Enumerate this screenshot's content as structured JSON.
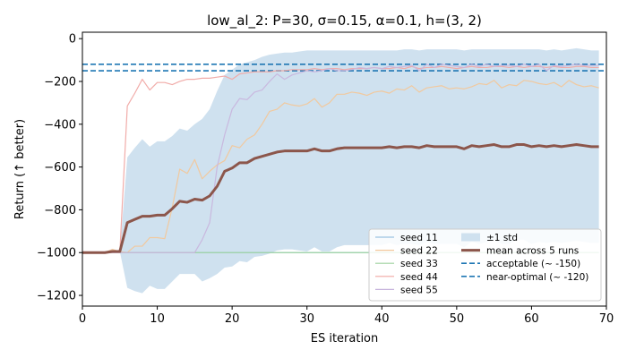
{
  "chart_data": {
    "type": "line",
    "title": "low_al_2: P=30, σ=0.15, α=0.1, h=(3, 2)",
    "xlabel": "ES iteration",
    "ylabel": "Return (↑ better)",
    "xlim": [
      0,
      70
    ],
    "ylim": [
      -1250,
      30
    ],
    "xticks": [
      0,
      10,
      20,
      30,
      40,
      50,
      60,
      70
    ],
    "yticks": [
      0,
      -200,
      -400,
      -600,
      -800,
      -1000,
      -1200
    ],
    "xtick_labels": [
      "0",
      "10",
      "20",
      "30",
      "40",
      "50",
      "60",
      "70"
    ],
    "ytick_labels": [
      "0",
      "−200",
      "−400",
      "−600",
      "−800",
      "−1000",
      "−1200"
    ],
    "grid": false,
    "legend_position": "lower-right",
    "colors": {
      "seed_11": "#9ac3e3",
      "seed_22": "#f2c79a",
      "seed_33": "#9fd39f",
      "seed_44": "#f0a8a4",
      "seed_55": "#c8b5dd",
      "std_band": "#cfe1ef",
      "mean": "#8c564b",
      "reference": "#1f77b4"
    },
    "x": [
      0,
      1,
      2,
      3,
      4,
      5,
      6,
      7,
      8,
      9,
      10,
      11,
      12,
      13,
      14,
      15,
      16,
      17,
      18,
      19,
      20,
      21,
      22,
      23,
      24,
      25,
      26,
      27,
      28,
      29,
      30,
      31,
      32,
      33,
      34,
      35,
      36,
      37,
      38,
      39,
      40,
      41,
      42,
      43,
      44,
      45,
      46,
      47,
      48,
      49,
      50,
      51,
      52,
      53,
      54,
      55,
      56,
      57,
      58,
      59,
      60,
      61,
      62,
      63,
      64,
      65,
      66,
      67,
      68,
      69
    ],
    "series": [
      {
        "name": "seed 11",
        "color_key": "seed_11",
        "values": [
          -1000,
          -1000,
          -1000,
          -1000,
          -1000,
          -1000,
          -1000,
          -1000,
          -1000,
          -1000,
          -1000,
          -1000,
          -1000,
          -1000,
          -1000,
          -1000,
          -1000,
          -1000,
          -1000,
          -1000,
          -1000,
          -1000,
          -1000,
          -1000,
          -1000,
          -1000,
          -1000,
          -1000,
          -1000,
          -1000,
          -1000,
          -1000,
          -1000,
          -1000,
          -1000,
          -1000,
          -1000,
          -1000,
          -1000,
          -1000,
          -1000,
          -1000,
          -1000,
          -1000,
          -1000,
          -1000,
          -1000,
          -1000,
          -1000,
          -1000,
          -1000,
          -1000,
          -1000,
          -1000,
          -1000,
          -1000,
          -1000,
          -1000,
          -1000,
          -1000,
          -1000,
          -1000,
          -1000,
          -1000,
          -1000,
          -1000,
          -1000,
          -1000,
          -1000,
          -1000
        ]
      },
      {
        "name": "seed 22",
        "color_key": "seed_22",
        "values": [
          -1000,
          -1000,
          -1000,
          -1000,
          -985,
          -995,
          -1000,
          -970,
          -970,
          -930,
          -930,
          -935,
          -790,
          -610,
          -630,
          -565,
          -655,
          -620,
          -590,
          -570,
          -500,
          -510,
          -470,
          -450,
          -400,
          -340,
          -330,
          -300,
          -310,
          -315,
          -305,
          -280,
          -320,
          -300,
          -260,
          -260,
          -250,
          -255,
          -265,
          -250,
          -245,
          -255,
          -235,
          -240,
          -220,
          -250,
          -230,
          -225,
          -220,
          -235,
          -230,
          -235,
          -225,
          -210,
          -215,
          -195,
          -230,
          -215,
          -220,
          -195,
          -200,
          -210,
          -215,
          -205,
          -225,
          -195,
          -215,
          -225,
          -220,
          -230
        ]
      },
      {
        "name": "seed 33",
        "color_key": "seed_33",
        "values": [
          -1000,
          -1000,
          -1000,
          -1000,
          -1000,
          -1000,
          -1000,
          -1000,
          -1000,
          -1000,
          -1000,
          -1000,
          -1000,
          -1000,
          -1000,
          -1000,
          -1000,
          -1000,
          -1000,
          -1000,
          -1000,
          -1000,
          -1000,
          -1000,
          -1000,
          -1000,
          -1000,
          -1000,
          -1000,
          -1000,
          -1000,
          -1000,
          -1000,
          -1000,
          -1000,
          -1000,
          -1000,
          -1000,
          -1000,
          -1000,
          -1000,
          -1000,
          -1000,
          -1000,
          -1000,
          -1000,
          -1000,
          -1000,
          -1000,
          -1000,
          -1000,
          -1000,
          -1000,
          -1000,
          -1000,
          -1000,
          -1000,
          -1000,
          -1000,
          -1000,
          -1000,
          -1000,
          -1000,
          -1000,
          -1000,
          -1000,
          -1000,
          -1000,
          -1000,
          -1000
        ]
      },
      {
        "name": "seed 44",
        "color_key": "seed_44",
        "values": [
          -1000,
          -1000,
          -1000,
          -1000,
          -1000,
          -1000,
          -315,
          -255,
          -190,
          -240,
          -205,
          -205,
          -215,
          -200,
          -190,
          -190,
          -185,
          -185,
          -180,
          -175,
          -190,
          -165,
          -160,
          -155,
          -155,
          -155,
          -150,
          -150,
          -145,
          -145,
          -145,
          -140,
          -145,
          -140,
          -140,
          -145,
          -140,
          -140,
          -140,
          -135,
          -140,
          -140,
          -135,
          -140,
          -130,
          -140,
          -135,
          -135,
          -130,
          -135,
          -140,
          -135,
          -130,
          -135,
          -135,
          -130,
          -130,
          -135,
          -130,
          -135,
          -130,
          -130,
          -135,
          -130,
          -135,
          -135,
          -130,
          -130,
          -135,
          -135
        ]
      },
      {
        "name": "seed 55",
        "color_key": "seed_55",
        "values": [
          -1000,
          -1000,
          -1000,
          -1000,
          -1000,
          -1000,
          -1000,
          -1000,
          -1000,
          -1000,
          -1000,
          -1000,
          -1000,
          -1000,
          -1000,
          -1000,
          -940,
          -860,
          -600,
          -450,
          -330,
          -280,
          -285,
          -250,
          -240,
          -200,
          -165,
          -190,
          -170,
          -160,
          -150,
          -155,
          -150,
          -140,
          -150,
          -150,
          -145,
          -135,
          -140,
          -135,
          -140,
          -130,
          -135,
          -130,
          -125,
          -150,
          -120,
          -135,
          -120,
          -125,
          -130,
          -135,
          -120,
          -130,
          -120,
          -130,
          -125,
          -125,
          -130,
          -120,
          -130,
          -120,
          -150,
          -125,
          -130,
          -125,
          -120,
          -125,
          -125,
          -125
        ]
      },
      {
        "name": "mean across 5 runs",
        "color_key": "mean",
        "values": [
          -1000,
          -1000,
          -1000,
          -1000,
          -995,
          -995,
          -860,
          -845,
          -830,
          -830,
          -825,
          -825,
          -795,
          -760,
          -765,
          -750,
          -755,
          -735,
          -690,
          -620,
          -605,
          -580,
          -580,
          -560,
          -550,
          -540,
          -530,
          -525,
          -525,
          -525,
          -525,
          -515,
          -525,
          -525,
          -515,
          -510,
          -510,
          -510,
          -510,
          -510,
          -510,
          -505,
          -510,
          -505,
          -505,
          -510,
          -500,
          -505,
          -505,
          -505,
          -505,
          -515,
          -500,
          -505,
          -500,
          -495,
          -505,
          -505,
          -495,
          -495,
          -505,
          -500,
          -505,
          -500,
          -505,
          -500,
          -495,
          -500,
          -505,
          -505
        ]
      }
    ],
    "std_band": {
      "name": "±1 std",
      "color_key": "std_band",
      "upper": [
        -1000,
        -1000,
        -1000,
        -1000,
        -995,
        -995,
        -555,
        -510,
        -470,
        -505,
        -480,
        -480,
        -455,
        -420,
        -430,
        -400,
        -375,
        -330,
        -245,
        -170,
        -145,
        -120,
        -110,
        -100,
        -85,
        -75,
        -70,
        -65,
        -65,
        -60,
        -55,
        -55,
        -55,
        -55,
        -55,
        -55,
        -55,
        -55,
        -55,
        -55,
        -55,
        -55,
        -55,
        -50,
        -50,
        -55,
        -50,
        -50,
        -50,
        -50,
        -50,
        -55,
        -50,
        -50,
        -50,
        -50,
        -50,
        -50,
        -50,
        -50,
        -50,
        -50,
        -55,
        -50,
        -55,
        -50,
        -45,
        -50,
        -55,
        -55
      ],
      "lower": [
        -1000,
        -1000,
        -1000,
        -1000,
        -995,
        -995,
        -1165,
        -1180,
        -1190,
        -1155,
        -1170,
        -1170,
        -1135,
        -1100,
        -1100,
        -1100,
        -1135,
        -1120,
        -1100,
        -1070,
        -1065,
        -1040,
        -1045,
        -1020,
        -1015,
        -1005,
        -990,
        -985,
        -985,
        -990,
        -995,
        -975,
        -995,
        -995,
        -975,
        -965,
        -965,
        -965,
        -965,
        -965,
        -965,
        -955,
        -965,
        -960,
        -960,
        -965,
        -950,
        -960,
        -960,
        -960,
        -960,
        -975,
        -950,
        -960,
        -950,
        -940,
        -960,
        -960,
        -940,
        -940,
        -960,
        -950,
        -955,
        -950,
        -955,
        -950,
        -945,
        -950,
        -955,
        -955
      ]
    },
    "reference_lines": [
      {
        "name": "acceptable (~ -150)",
        "y": -150,
        "color_key": "reference"
      },
      {
        "name": "near-optimal (~ -120)",
        "y": -120,
        "color_key": "reference"
      }
    ]
  }
}
